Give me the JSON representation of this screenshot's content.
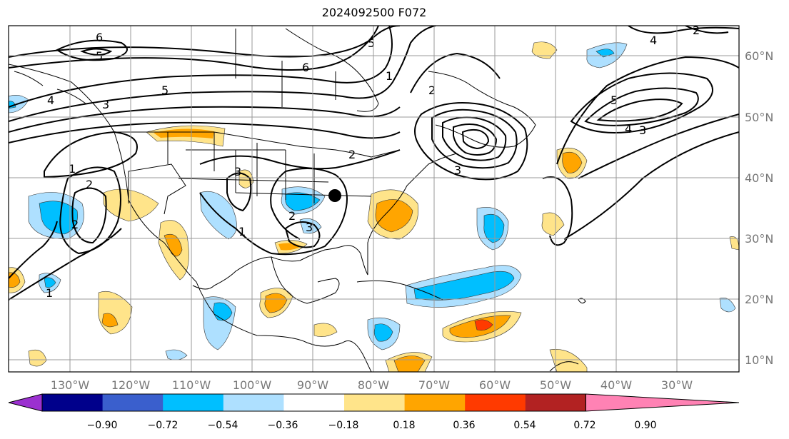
{
  "title": "2024092500 F072",
  "lat_labels": [
    "60°N",
    "50°N",
    "40°N",
    "30°N",
    "20°N",
    "10°N"
  ],
  "lon_labels": [
    "130°W",
    "120°W",
    "110°W",
    "100°W",
    "90°W",
    "80°W",
    "70°W",
    "60°W",
    "50°W",
    "40°W",
    "30°W"
  ],
  "colorbar": {
    "ticks": [
      "−0.90",
      "−0.72",
      "−0.54",
      "−0.36",
      "−0.18",
      "0.18",
      "0.36",
      "0.54",
      "0.72",
      "0.90"
    ],
    "colors": [
      "#9b30d0",
      "#00008b",
      "#3a5fcd",
      "#00bfff",
      "#aee0ff",
      "#ffffff",
      "#ffe48a",
      "#ffa500",
      "#ff3a00",
      "#b22222",
      "#ff82b4"
    ]
  },
  "contour_labels": [
    "6",
    "5",
    "6",
    "5",
    "4",
    "3",
    "2",
    "1",
    "2",
    "1",
    "3",
    "2",
    "3",
    "2",
    "3",
    "5",
    "4",
    "3",
    "4",
    "5",
    "1",
    "2",
    "1",
    "2"
  ],
  "marker": "storm-center"
}
